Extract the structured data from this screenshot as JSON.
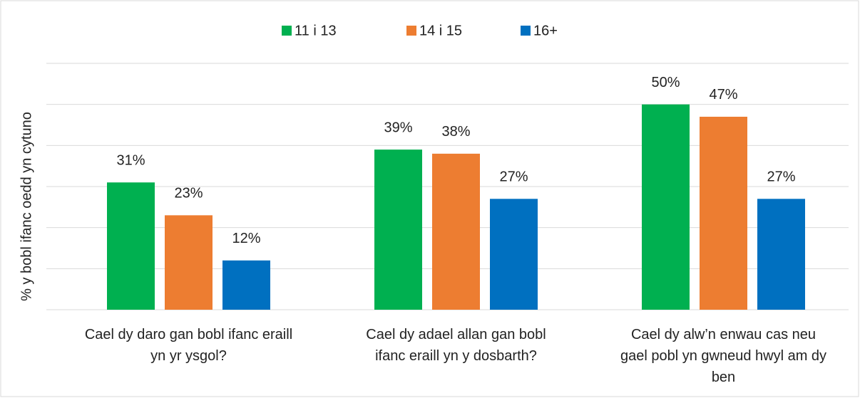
{
  "chart_data": {
    "type": "bar",
    "y_label": "% y bobl ifanc oedd yn cytuno",
    "categories": [
      "Cael dy daro gan bobl ifanc eraill yn yr ysgol?",
      "Cael dy adael allan gan bobl ifanc eraill yn y dosbarth?",
      "Cael dy alw’n enwau cas neu gael pobl yn gwneud hwyl am dy ben"
    ],
    "series": [
      {
        "name": "11 i 13",
        "color": "#00b050",
        "values": [
          31,
          39,
          50
        ],
        "value_labels": [
          "31%",
          "39%",
          "50%"
        ]
      },
      {
        "name": "14 i 15",
        "color": "#ed7d31",
        "values": [
          23,
          38,
          47
        ],
        "value_labels": [
          "23%",
          "38%",
          "47%"
        ]
      },
      {
        "name": "16+",
        "color": "#0070c0",
        "values": [
          12,
          27,
          27
        ],
        "value_labels": [
          "12%",
          "27%",
          "27%"
        ]
      }
    ],
    "ylim": [
      0,
      60
    ],
    "yticks": [
      0,
      10,
      20,
      30,
      40,
      50,
      60
    ],
    "grid": true,
    "legend": "top"
  }
}
